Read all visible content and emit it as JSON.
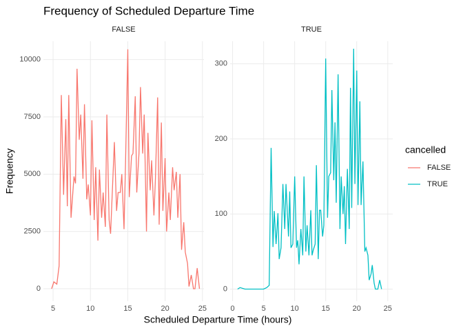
{
  "chart_data": {
    "type": "line",
    "title": "Frequency of Scheduled Departure Time",
    "xlabel": "Scheduled Departure Time (hours)",
    "ylabel": "Frequency",
    "legend_title": "cancelled",
    "grid": true,
    "series": [
      {
        "name": "FALSE",
        "color": "#F8766D"
      },
      {
        "name": "TRUE",
        "color": "#00BFC4"
      }
    ],
    "facets": [
      {
        "label": "FALSE",
        "xlim": [
          3.7,
          25.2
        ],
        "ylim": [
          -540,
          10800
        ],
        "xticks": [
          5,
          10,
          15,
          20,
          25
        ],
        "yticks": [
          0,
          2500,
          5000,
          7500,
          10000
        ],
        "x": [
          4.8,
          5.1,
          5.5,
          5.8,
          6.1,
          6.4,
          6.7,
          6.9,
          7.1,
          7.4,
          7.8,
          8.0,
          8.2,
          8.5,
          8.7,
          9.0,
          9.2,
          9.5,
          9.7,
          10.0,
          10.2,
          10.5,
          10.7,
          11.0,
          11.2,
          11.5,
          11.7,
          12.0,
          12.2,
          12.5,
          12.7,
          13.0,
          13.2,
          13.5,
          13.7,
          14.0,
          14.2,
          14.5,
          14.7,
          15.0,
          15.2,
          15.5,
          15.7,
          16.0,
          16.2,
          16.5,
          16.7,
          17.0,
          17.2,
          17.5,
          17.7,
          18.0,
          18.2,
          18.5,
          18.7,
          19.0,
          19.2,
          19.5,
          19.7,
          20.0,
          20.2,
          20.5,
          20.7,
          21.0,
          21.2,
          21.5,
          21.7,
          22.0,
          22.2,
          22.5,
          22.7,
          23.0,
          23.2,
          23.5,
          23.8,
          24.0,
          24.3,
          24.6
        ],
        "values": [
          0,
          300,
          200,
          1000,
          8450,
          4100,
          7400,
          3600,
          8450,
          3100,
          4900,
          4600,
          9600,
          6500,
          7600,
          4800,
          8050,
          3900,
          4550,
          3200,
          7350,
          3000,
          5300,
          2100,
          5200,
          3100,
          4200,
          2700,
          7600,
          3000,
          2400,
          4800,
          6400,
          3400,
          4200,
          4200,
          5000,
          2600,
          5500,
          10450,
          4000,
          5800,
          5900,
          8400,
          4200,
          5900,
          8800,
          5900,
          7600,
          2500,
          6800,
          4300,
          5600,
          3200,
          4800,
          8350,
          2800,
          7250,
          3400,
          5700,
          2500,
          4200,
          3000,
          5300,
          4300,
          5100,
          3100,
          5000,
          1700,
          2900,
          1600,
          1100,
          100,
          600,
          0,
          0,
          900,
          0
        ]
      },
      {
        "label": "TRUE",
        "xlim": [
          -0.4,
          25.8
        ],
        "ylim": [
          -16,
          330
        ],
        "xticks": [
          0,
          5,
          10,
          15,
          20,
          25
        ],
        "yticks": [
          0,
          100,
          200,
          300
        ],
        "x": [
          0.8,
          1.2,
          2,
          3,
          4,
          5,
          5.5,
          5.9,
          6.2,
          6.5,
          6.7,
          7.0,
          7.3,
          7.5,
          7.8,
          8.1,
          8.4,
          8.6,
          9.0,
          9.2,
          9.4,
          9.7,
          10.0,
          10.3,
          10.5,
          10.7,
          11.0,
          11.3,
          11.5,
          11.8,
          12.0,
          12.3,
          12.6,
          12.8,
          13.0,
          13.3,
          13.5,
          13.8,
          14.0,
          14.2,
          14.5,
          14.7,
          15.0,
          15.3,
          15.5,
          15.8,
          16.0,
          16.3,
          16.5,
          16.7,
          17.0,
          17.3,
          17.5,
          17.8,
          18.0,
          18.2,
          18.5,
          18.8,
          19.0,
          19.2,
          19.5,
          19.7,
          20.0,
          20.2,
          20.5,
          20.7,
          21.0,
          21.3,
          21.5,
          21.8,
          22.0,
          22.3,
          22.5,
          22.8,
          23.0,
          23.4,
          23.7,
          24.0
        ],
        "values": [
          0,
          2,
          0,
          0,
          0,
          0,
          2,
          5,
          188,
          56,
          104,
          60,
          101,
          40,
          55,
          140,
          80,
          140,
          70,
          130,
          55,
          60,
          150,
          55,
          65,
          33,
          80,
          45,
          150,
          50,
          85,
          45,
          105,
          45,
          52,
          60,
          165,
          40,
          105,
          105,
          70,
          85,
          307,
          95,
          150,
          155,
          265,
          145,
          222,
          115,
          286,
          80,
          150,
          100,
          137,
          60,
          160,
          80,
          268,
          108,
          320,
          140,
          291,
          112,
          250,
          112,
          170,
          50,
          55,
          45,
          12,
          20,
          32,
          8,
          0,
          0,
          12,
          0
        ]
      }
    ]
  }
}
